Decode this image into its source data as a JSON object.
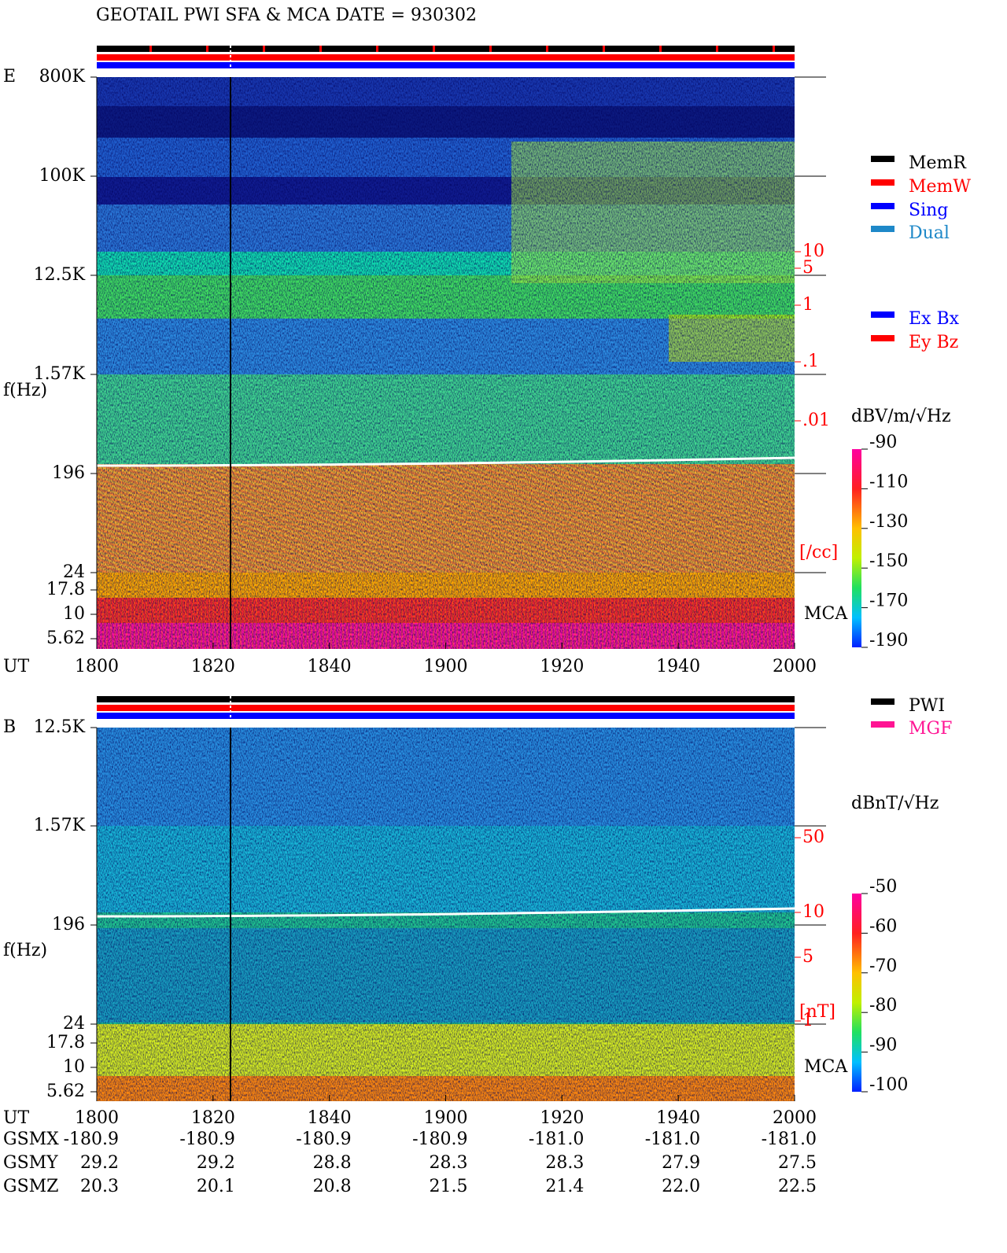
{
  "title": "GEOTAIL  PWI SFA & MCA   DATE = 930302",
  "x_label": "UT",
  "x_ticks": [
    "1800",
    "1820",
    "1840",
    "1900",
    "1920",
    "1940",
    "2000"
  ],
  "panels": [
    {
      "label": "E",
      "y_label": "f(Hz)",
      "freq_ticks": [
        "800K",
        "100K",
        "12.5K",
        "1.57K",
        "196",
        "24",
        "17.8",
        "10",
        "5.62"
      ],
      "density_ticks": [
        "10",
        "5",
        "1",
        ".1",
        ".01"
      ],
      "density_unit": "[/cc]",
      "mca": "MCA",
      "unit": "dBV/m/√Hz",
      "colorbar_ticks": [
        -90,
        -110,
        -130,
        -150,
        -170,
        -190
      ],
      "legend": [
        {
          "name": "MemR",
          "color": "#000000"
        },
        {
          "name": "MemW",
          "color": "#ff0000"
        },
        {
          "name": "Sing",
          "color": "#0000ff"
        },
        {
          "name": "Dual",
          "color": "#1e88c8"
        }
      ],
      "legend2": [
        {
          "name": "Ex Bx",
          "color": "#0000ff"
        },
        {
          "name": "Ey Bz",
          "color": "#ff0000"
        }
      ]
    },
    {
      "label": "B",
      "y_label": "f(Hz)",
      "freq_ticks": [
        "12.5K",
        "1.57K",
        "196",
        "24",
        "17.8",
        "10",
        "5.62"
      ],
      "density_ticks": [
        "50",
        "10",
        "5",
        "1"
      ],
      "density_unit": "[nT]",
      "mca": "MCA",
      "unit": "dBnT/√Hz",
      "colorbar_ticks": [
        -50,
        -60,
        -70,
        -80,
        -90,
        -100
      ],
      "legend": [
        {
          "name": "PWI",
          "color": "#000000"
        },
        {
          "name": "MGF",
          "color": "#ff1493"
        }
      ],
      "legend2": []
    }
  ],
  "orbit": [
    {
      "name": "GSMX",
      "values": [
        "-180.9",
        "-180.9",
        "-180.9",
        "-180.9",
        "-181.0",
        "-181.0",
        "-181.0"
      ]
    },
    {
      "name": "GSMY",
      "values": [
        "29.2",
        "29.2",
        "28.8",
        "28.3",
        "28.3",
        "27.9",
        "27.5"
      ]
    },
    {
      "name": "GSMZ",
      "values": [
        "20.3",
        "20.1",
        "20.8",
        "21.5",
        "21.4",
        "22.0",
        "22.5"
      ]
    }
  ]
}
